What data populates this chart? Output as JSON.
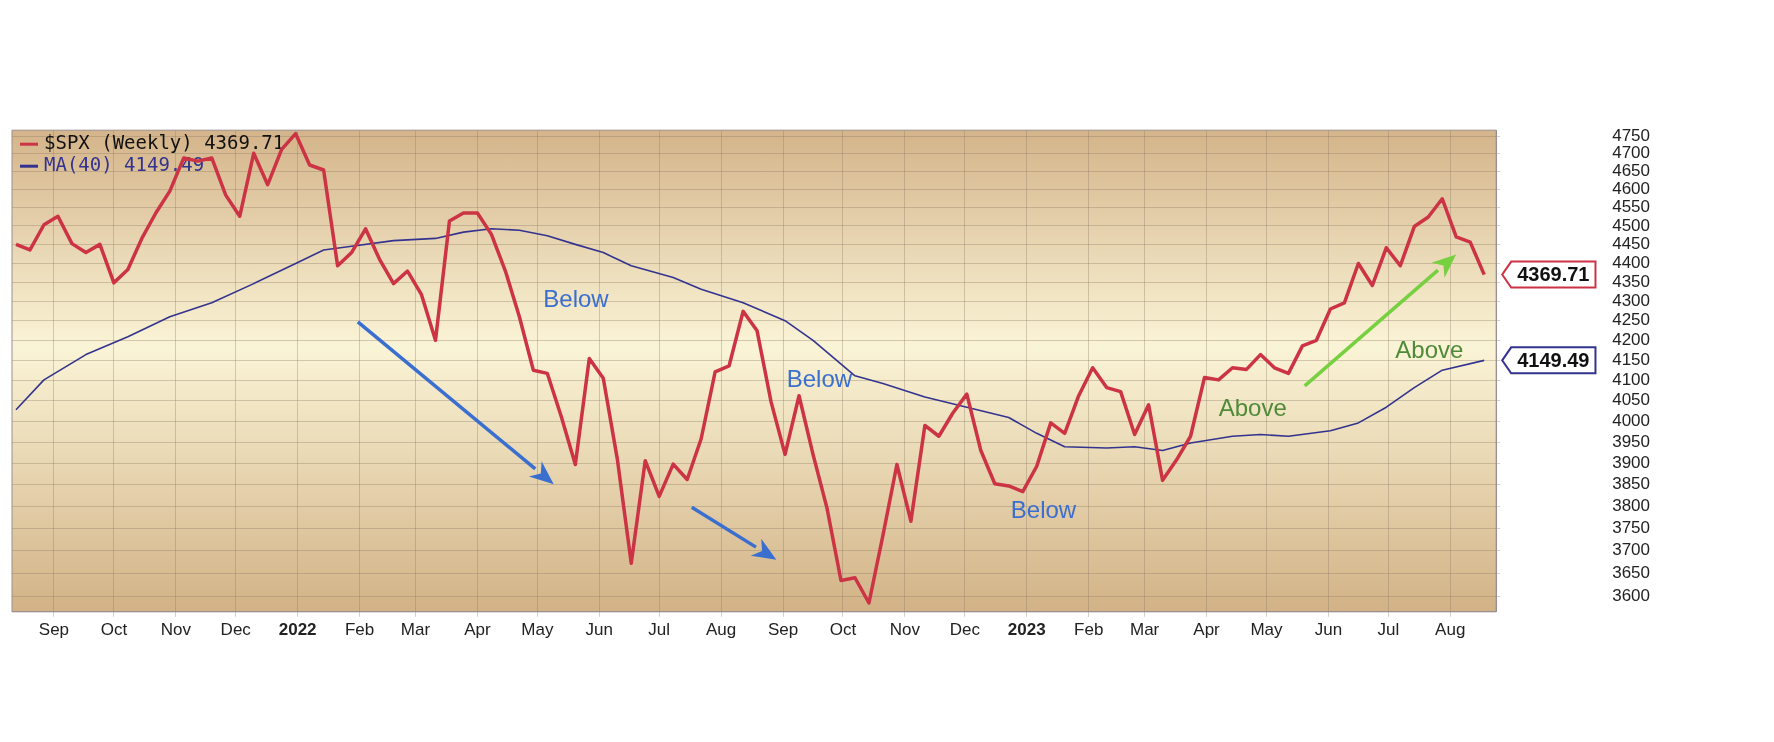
{
  "chart_data": {
    "type": "line",
    "log": true,
    "grid": true,
    "legend": "top left",
    "x": [
      "2021-08-13",
      "2021-08-20",
      "2021-08-27",
      "2021-09-03",
      "2021-09-10",
      "2021-09-17",
      "2021-09-24",
      "2021-10-01",
      "2021-10-08",
      "2021-10-15",
      "2021-10-22",
      "2021-10-29",
      "2021-11-05",
      "2021-11-12",
      "2021-11-19",
      "2021-11-26",
      "2021-12-03",
      "2021-12-10",
      "2021-12-17",
      "2021-12-24",
      "2021-12-31",
      "2022-01-07",
      "2022-01-14",
      "2022-01-21",
      "2022-01-28",
      "2022-02-04",
      "2022-02-11",
      "2022-02-18",
      "2022-02-25",
      "2022-03-04",
      "2022-03-11",
      "2022-03-18",
      "2022-03-25",
      "2022-04-01",
      "2022-04-08",
      "2022-04-15",
      "2022-04-22",
      "2022-04-29",
      "2022-05-06",
      "2022-05-13",
      "2022-05-20",
      "2022-05-27",
      "2022-06-03",
      "2022-06-10",
      "2022-06-17",
      "2022-06-24",
      "2022-07-01",
      "2022-07-08",
      "2022-07-15",
      "2022-07-22",
      "2022-07-29",
      "2022-08-05",
      "2022-08-12",
      "2022-08-19",
      "2022-08-26",
      "2022-09-02",
      "2022-09-09",
      "2022-09-16",
      "2022-09-23",
      "2022-09-30",
      "2022-10-07",
      "2022-10-14",
      "2022-10-21",
      "2022-10-28",
      "2022-11-04",
      "2022-11-11",
      "2022-11-18",
      "2022-11-25",
      "2022-12-02",
      "2022-12-09",
      "2022-12-16",
      "2022-12-23",
      "2022-12-30",
      "2023-01-06",
      "2023-01-13",
      "2023-01-20",
      "2023-01-27",
      "2023-02-03",
      "2023-02-10",
      "2023-02-17",
      "2023-02-24",
      "2023-03-03",
      "2023-03-10",
      "2023-03-17",
      "2023-03-24",
      "2023-03-31",
      "2023-04-07",
      "2023-04-14",
      "2023-04-21",
      "2023-04-28",
      "2023-05-05",
      "2023-05-12",
      "2023-05-19",
      "2023-05-26",
      "2023-06-02",
      "2023-06-09",
      "2023-06-16",
      "2023-06-23",
      "2023-06-30",
      "2023-07-07",
      "2023-07-14",
      "2023-07-21",
      "2023-07-28",
      "2023-08-04",
      "2023-08-11",
      "2023-08-18"
    ],
    "series": [
      {
        "name": "$SPX (Weekly) 4369.71",
        "color": "#cc3344",
        "values": [
          4450,
          4435,
          4503,
          4526,
          4452,
          4428,
          4450,
          4348,
          4383,
          4466,
          4535,
          4595,
          4688,
          4679,
          4688,
          4584,
          4526,
          4701,
          4613,
          4712,
          4757,
          4668,
          4654,
          4393,
          4428,
          4492,
          4410,
          4346,
          4379,
          4317,
          4200,
          4513,
          4535,
          4535,
          4477,
          4379,
          4260,
          4125,
          4117,
          4011,
          3897,
          4154,
          4105,
          3911,
          3672,
          3906,
          3823,
          3898,
          3862,
          3958,
          4121,
          4136,
          4274,
          4224,
          4047,
          3921,
          4062,
          3921,
          3796,
          3634,
          3640,
          3585,
          3734,
          3897,
          3766,
          3990,
          3964,
          4020,
          4066,
          3930,
          3852,
          3847,
          3834,
          3893,
          3996,
          3971,
          4062,
          4131,
          4082,
          4072,
          3968,
          4040,
          3860,
          3908,
          3964,
          4107,
          4101,
          4131,
          4127,
          4164,
          4131,
          4117,
          4186,
          4200,
          4280,
          4296,
          4399,
          4341,
          4441,
          4393,
          4498,
          4524,
          4574,
          4470,
          4456,
          4369.71
        ],
        "value_labels": [
          null,
          null,
          null,
          null,
          null,
          null,
          null,
          null,
          null,
          null,
          null,
          null,
          null,
          null,
          null,
          null,
          null,
          null,
          null,
          null,
          null,
          null,
          null,
          null,
          null,
          null,
          null,
          null,
          null,
          null,
          null,
          null,
          null,
          null,
          null,
          null,
          null,
          null,
          null,
          null,
          null,
          null,
          null,
          null,
          null,
          null,
          null,
          null,
          null,
          null,
          null,
          null,
          null,
          null,
          null,
          null,
          null,
          null,
          null,
          null,
          null,
          null,
          null,
          null,
          null,
          null,
          null,
          null,
          null,
          null,
          null,
          null,
          null,
          null,
          null,
          null,
          null,
          null,
          null,
          null,
          null,
          null,
          null,
          null,
          null,
          null,
          null,
          null,
          null,
          null,
          null,
          null,
          null,
          null,
          null,
          null,
          null,
          null,
          null,
          null,
          null,
          null,
          null,
          null,
          null,
          "4369.71"
        ]
      },
      {
        "name": "MA(40) 4149.49",
        "color": "#33338f",
        "x": [
          "2021-08-13",
          "2021-08-27",
          "2021-09-17",
          "2021-10-08",
          "2021-10-29",
          "2021-11-19",
          "2021-12-10",
          "2021-12-31",
          "2022-01-14",
          "2022-01-28",
          "2022-02-18",
          "2022-03-11",
          "2022-03-25",
          "2022-04-08",
          "2022-04-22",
          "2022-05-06",
          "2022-05-20",
          "2022-06-03",
          "2022-06-17",
          "2022-07-08",
          "2022-07-22",
          "2022-08-12",
          "2022-09-02",
          "2022-09-16",
          "2022-10-07",
          "2022-10-21",
          "2022-11-11",
          "2022-12-02",
          "2022-12-23",
          "2023-01-06",
          "2023-01-20",
          "2023-02-10",
          "2023-02-24",
          "2023-03-10",
          "2023-03-24",
          "2023-04-14",
          "2023-04-28",
          "2023-05-12",
          "2023-06-02",
          "2023-06-16",
          "2023-06-30",
          "2023-07-14",
          "2023-07-28",
          "2023-08-18"
        ],
        "values": [
          4028,
          4101,
          4164,
          4209,
          4260,
          4296,
          4346,
          4399,
          4435,
          4445,
          4460,
          4466,
          4483,
          4492,
          4488,
          4473,
          4450,
          4428,
          4393,
          4362,
          4331,
          4296,
          4250,
          4200,
          4111,
          4092,
          4059,
          4034,
          4009,
          3971,
          3939,
          3936,
          3939,
          3930,
          3948,
          3964,
          3968,
          3964,
          3977,
          3996,
          4034,
          4082,
          4125,
          4149.49
        ],
        "value_labels": [
          null,
          null,
          null,
          null,
          null,
          null,
          null,
          null,
          null,
          null,
          null,
          null,
          null,
          null,
          null,
          null,
          null,
          null,
          null,
          null,
          null,
          null,
          null,
          null,
          null,
          null,
          null,
          null,
          null,
          null,
          null,
          null,
          null,
          null,
          null,
          null,
          null,
          null,
          null,
          null,
          null,
          null,
          null,
          "4149.49"
        ]
      }
    ],
    "xlim": [
      "2021-08-11",
      "2023-08-24"
    ],
    "xticks": [
      {
        "value": "2021-09-01",
        "label": "Sep"
      },
      {
        "value": "2021-10-01",
        "label": "Oct"
      },
      {
        "value": "2021-11-01",
        "label": "Nov"
      },
      {
        "value": "2021-12-01",
        "label": "Dec"
      },
      {
        "value": "2022-01-01",
        "label": "2022"
      },
      {
        "value": "2022-02-01",
        "label": "Feb"
      },
      {
        "value": "2022-03-01",
        "label": "Mar"
      },
      {
        "value": "2022-04-01",
        "label": "Apr"
      },
      {
        "value": "2022-05-01",
        "label": "May"
      },
      {
        "value": "2022-06-01",
        "label": "Jun"
      },
      {
        "value": "2022-07-01",
        "label": "Jul"
      },
      {
        "value": "2022-08-01",
        "label": "Aug"
      },
      {
        "value": "2022-09-01",
        "label": "Sep"
      },
      {
        "value": "2022-10-01",
        "label": "Oct"
      },
      {
        "value": "2022-11-01",
        "label": "Nov"
      },
      {
        "value": "2022-12-01",
        "label": "Dec"
      },
      {
        "value": "2023-01-01",
        "label": "2023"
      },
      {
        "value": "2023-02-01",
        "label": "Feb"
      },
      {
        "value": "2023-03-01",
        "label": "Mar"
      },
      {
        "value": "2023-04-01",
        "label": "Apr"
      },
      {
        "value": "2023-05-01",
        "label": "May"
      },
      {
        "value": "2023-06-01",
        "label": "Jun"
      },
      {
        "value": "2023-07-01",
        "label": "Jul"
      },
      {
        "value": "2023-08-01",
        "label": "Aug"
      }
    ],
    "ylim": [
      3566,
      4767
    ],
    "yticks": [
      3600,
      3650,
      3700,
      3750,
      3800,
      3850,
      3900,
      3950,
      4000,
      4050,
      4100,
      4150,
      4200,
      4250,
      4300,
      4350,
      4400,
      4450,
      4500,
      4550,
      4600,
      4650,
      4700,
      4750
    ],
    "annotations": [
      "Below",
      "Below",
      "Below",
      "Above",
      "Above"
    ]
  }
}
